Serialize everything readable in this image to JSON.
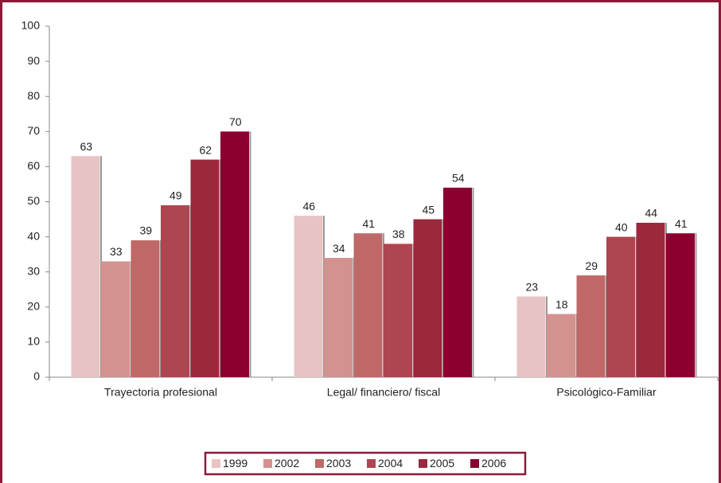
{
  "chart_data": {
    "type": "bar",
    "categories": [
      "Trayectoria profesional",
      "Legal/ financiero/ fiscal",
      "Psicológico-Familiar"
    ],
    "series": [
      {
        "name": "1999",
        "color": "#e8c3c3",
        "values": [
          63,
          46,
          23
        ]
      },
      {
        "name": "2002",
        "color": "#d4928f",
        "values": [
          33,
          34,
          18
        ]
      },
      {
        "name": "2003",
        "color": "#c06868",
        "values": [
          39,
          41,
          29
        ]
      },
      {
        "name": "2004",
        "color": "#ad4650",
        "values": [
          49,
          38,
          40
        ]
      },
      {
        "name": "2005",
        "color": "#9c283d",
        "values": [
          62,
          45,
          44
        ]
      },
      {
        "name": "2006",
        "color": "#8c0030",
        "values": [
          70,
          54,
          41
        ]
      }
    ],
    "ylim": [
      0,
      100
    ],
    "yticks": [
      0,
      10,
      20,
      30,
      40,
      50,
      60,
      70,
      80,
      90,
      100
    ],
    "legend": "bottom"
  }
}
